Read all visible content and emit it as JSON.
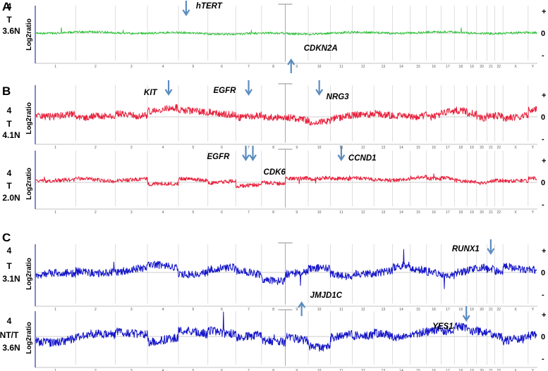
{
  "panel_letters": [
    "A",
    "B",
    "C"
  ],
  "y_axis_label": "Log2ratio",
  "right_axis_ticks": [
    "+",
    "0",
    "-"
  ],
  "chromosomes": [
    "1",
    "2",
    "3",
    "4",
    "5",
    "6",
    "7",
    "8",
    "9",
    "10",
    "11",
    "12",
    "13",
    "14",
    "15",
    "16",
    "17",
    "18",
    "19",
    "20",
    "21",
    "22",
    "X",
    "Y"
  ],
  "colors": {
    "A": "#22c22e",
    "B": "#e8203c",
    "C": "#1515c8",
    "arrow": "#5b8cbf",
    "grid": "#c9c9c9",
    "axis": "#3333aa"
  },
  "chart_data": [
    {
      "type": "line",
      "panel": "A",
      "sample": {
        "line1": "4",
        "line2": "T",
        "line3": "3.6N"
      },
      "annotations": [
        {
          "gene": "hTERT",
          "chromosome": "5",
          "direction": "gain"
        },
        {
          "gene": "CDKN2A",
          "chromosome": "9",
          "direction": "loss"
        }
      ]
    },
    {
      "type": "line",
      "panel": "B",
      "sample": {
        "line1": "4",
        "line2": "T",
        "line3": "4.1N"
      },
      "annotations": [
        {
          "gene": "KIT",
          "chromosome": "4",
          "direction": "gain"
        },
        {
          "gene": "EGFR",
          "chromosome": "7",
          "direction": "gain"
        },
        {
          "gene": "NRG3",
          "chromosome": "10",
          "direction": "gain"
        }
      ]
    },
    {
      "type": "line",
      "panel": "B",
      "sample": {
        "line1": "4",
        "line2": "T",
        "line3": "2.0N"
      },
      "annotations": [
        {
          "gene": "EGFR",
          "chromosome": "7",
          "direction": "gain"
        },
        {
          "gene": "CDK6",
          "chromosome": "7",
          "direction": "gain"
        },
        {
          "gene": "CCND1",
          "chromosome": "11",
          "direction": "gain"
        }
      ]
    },
    {
      "type": "line",
      "panel": "C",
      "sample": {
        "line1": "4",
        "line2": "T",
        "line3": "3.1N"
      },
      "annotations": [
        {
          "gene": "RUNX1",
          "chromosome": "21",
          "direction": "gain"
        },
        {
          "gene": "JMJD1C",
          "chromosome": "10",
          "direction": "loss"
        }
      ]
    },
    {
      "type": "line",
      "panel": "C",
      "sample": {
        "line1": "4",
        "line2": "NT/T",
        "line3": "3.6N"
      },
      "annotations": [
        {
          "gene": "YES1",
          "chromosome": "18",
          "direction": "gain"
        }
      ]
    }
  ]
}
